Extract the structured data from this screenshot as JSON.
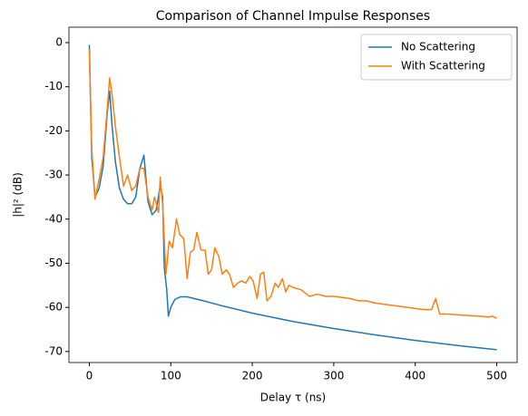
{
  "chart_data": {
    "type": "line",
    "title": "Comparison of Channel Impulse Responses",
    "xlabel": "Delay τ (ns)",
    "ylabel": "|h|² (dB)",
    "xlim": [
      -25,
      525
    ],
    "ylim": [
      -72.5,
      3.5
    ],
    "xticks": [
      0,
      100,
      200,
      300,
      400,
      500
    ],
    "yticks": [
      -70,
      -60,
      -50,
      -40,
      -30,
      -20,
      -10,
      0
    ],
    "legend": "upper right",
    "series": [
      {
        "name": "No Scattering",
        "color": "#1f77b4",
        "x": [
          0,
          3,
          7,
          12,
          17,
          22,
          25,
          28,
          32,
          37,
          42,
          47,
          52,
          57,
          62,
          67,
          72,
          77,
          82,
          87,
          90,
          92,
          95,
          97,
          100,
          105,
          112,
          120,
          140,
          160,
          200,
          250,
          300,
          350,
          400,
          450,
          500
        ],
        "values": [
          -0.5,
          -26,
          -35,
          -33,
          -28,
          -16,
          -11,
          -19,
          -27,
          -33,
          -35.5,
          -36.5,
          -36.5,
          -35,
          -28.5,
          -25.5,
          -36,
          -39,
          -38,
          -32.5,
          -35,
          -51,
          -56,
          -62,
          -60,
          -58.2,
          -57.6,
          -57.6,
          -58.5,
          -59.5,
          -61.3,
          -63.2,
          -64.8,
          -66.2,
          -67.5,
          -68.6,
          -69.6
        ]
      },
      {
        "name": "With Scattering",
        "color": "#ff7f0e",
        "x": [
          0,
          3,
          7,
          12,
          17,
          22,
          25,
          28,
          32,
          37,
          42,
          47,
          52,
          57,
          62,
          67,
          72,
          77,
          80,
          85,
          87,
          90,
          94,
          98,
          102,
          107,
          111,
          116,
          120,
          124,
          128,
          132,
          137,
          142,
          146,
          150,
          154,
          159,
          163,
          168,
          172,
          177,
          182,
          187,
          192,
          197,
          201,
          206,
          210,
          214,
          218,
          223,
          228,
          232,
          237,
          241,
          245,
          250,
          260,
          270,
          280,
          290,
          300,
          320,
          330,
          340,
          350,
          370,
          390,
          410,
          420,
          425,
          430,
          440,
          460,
          480,
          490,
          495,
          500
        ],
        "values": [
          -1.5,
          -24,
          -35.5,
          -31,
          -26,
          -15,
          -8,
          -12,
          -19,
          -26,
          -32.5,
          -30,
          -33.5,
          -32.5,
          -28.5,
          -28.5,
          -35,
          -38,
          -35,
          -38.5,
          -30.5,
          -36.5,
          -52.5,
          -45,
          -46.5,
          -40,
          -43.5,
          -44.5,
          -53.5,
          -47.5,
          -47,
          -43,
          -47,
          -47,
          -52.5,
          -51.5,
          -46.5,
          -48.5,
          -52.5,
          -51.5,
          -52.5,
          -55.5,
          -54.5,
          -54,
          -54.5,
          -53,
          -54,
          -58,
          -52.5,
          -52,
          -58.5,
          -57.5,
          -54.5,
          -55.5,
          -53.5,
          -56.5,
          -55,
          -55.5,
          -56,
          -57.5,
          -57,
          -57.5,
          -57.5,
          -58,
          -58.5,
          -58.5,
          -59,
          -59.5,
          -60,
          -60.5,
          -60.5,
          -58,
          -61.5,
          -61.5,
          -61.8,
          -62,
          -62.2,
          -62,
          -62.5
        ]
      }
    ]
  }
}
